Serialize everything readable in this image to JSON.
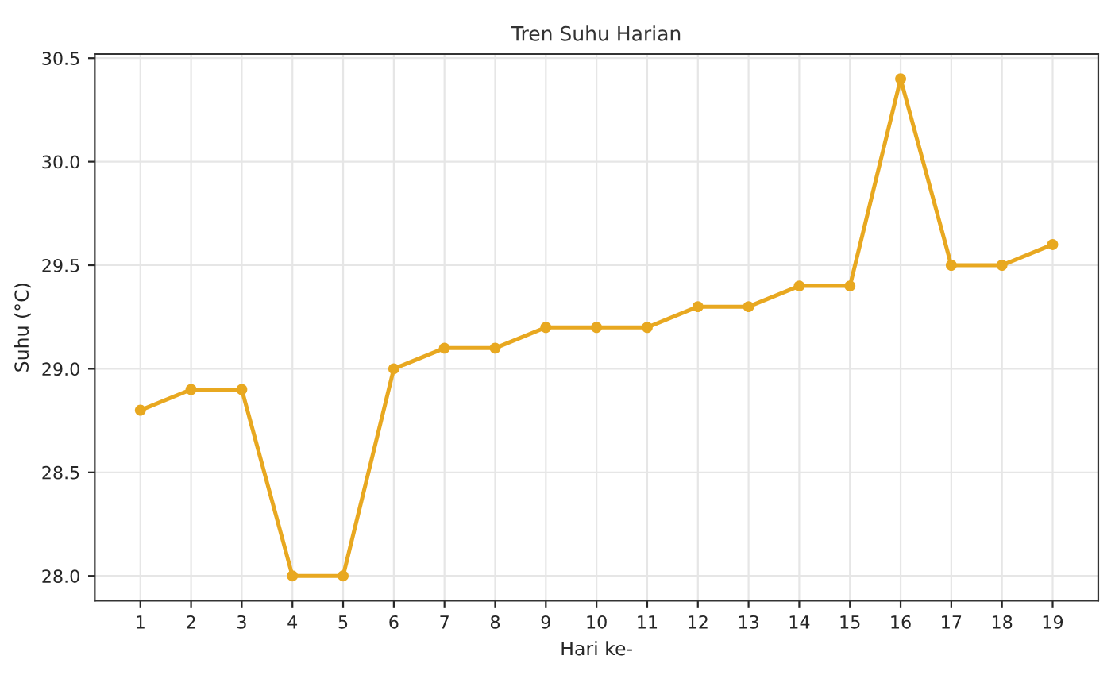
{
  "chart_data": {
    "type": "line",
    "title": "Tren Suhu Harian",
    "xlabel": "Hari ke-",
    "ylabel": "Suhu (°C)",
    "x": [
      1,
      2,
      3,
      4,
      5,
      6,
      7,
      8,
      9,
      10,
      11,
      12,
      13,
      14,
      15,
      16,
      17,
      18,
      19
    ],
    "series": [
      {
        "color": "#e8a820",
        "values": [
          28.8,
          28.9,
          28.9,
          28.0,
          28.0,
          29.0,
          29.1,
          29.1,
          29.2,
          29.2,
          29.2,
          29.3,
          29.3,
          29.4,
          29.4,
          30.4,
          29.5,
          29.5,
          29.6
        ]
      }
    ],
    "xlim": [
      0.1,
      19.9
    ],
    "xticks": [
      1,
      2,
      3,
      4,
      5,
      6,
      7,
      8,
      9,
      10,
      11,
      12,
      13,
      14,
      15,
      16,
      17,
      18,
      19
    ],
    "ylim": [
      27.88,
      30.52
    ],
    "yticks": [
      {
        "value": 28,
        "label": "28.0"
      },
      {
        "value": 28.5,
        "label": "28.5"
      },
      {
        "value": 29,
        "label": "29.0"
      },
      {
        "value": 29.5,
        "label": "29.5"
      },
      {
        "value": 30,
        "label": "30.0"
      },
      {
        "value": 30.5,
        "label": "30.5"
      }
    ],
    "grid": true,
    "marker": "circle",
    "line_style": "solid"
  }
}
